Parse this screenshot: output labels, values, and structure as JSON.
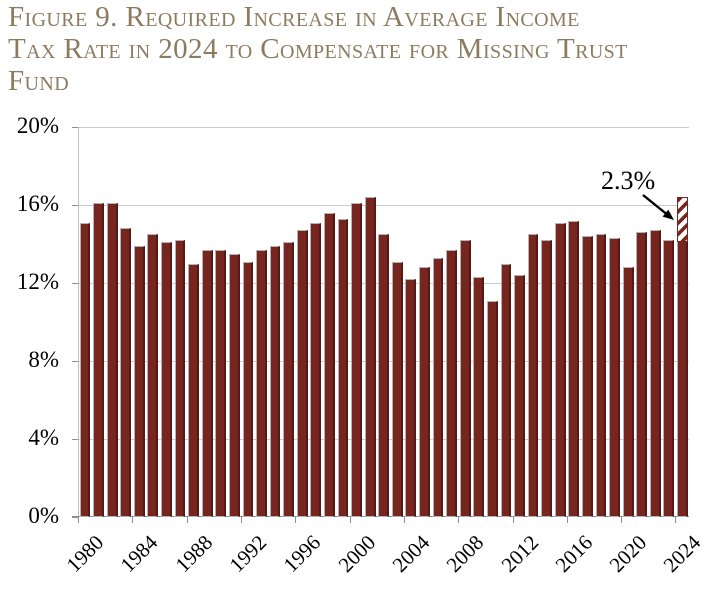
{
  "title": {
    "lines": [
      "Figure 9. Required Increase in Average Income",
      "Tax Rate in 2024 to Compensate for Missing Trust",
      "Fund"
    ]
  },
  "annotation": {
    "label": "2.3%"
  },
  "colors": {
    "title_text": "#8C7B5E",
    "bar_fill": "#76251F",
    "bar_edge_dark": "#551A16",
    "gridline": "#CBCBCB",
    "axis": "#8F8F8F",
    "hatch_white": "#FFFFFF"
  },
  "y_axis": {
    "ticks": [
      20,
      16,
      12,
      8,
      4,
      0
    ],
    "tick_labels": [
      "20%",
      "16%",
      "12%",
      "8%",
      "4%",
      "0%"
    ]
  },
  "x_axis": {
    "tick_years": [
      1980,
      1984,
      1988,
      1992,
      1996,
      2000,
      2004,
      2008,
      2012,
      2016,
      2020,
      2024
    ],
    "tick_labels": [
      "1980",
      "1984",
      "1988",
      "1992",
      "1996",
      "2000",
      "2004",
      "2008",
      "2012",
      "2016",
      "2020",
      "2024"
    ]
  },
  "chart_data": {
    "type": "bar",
    "title": "Figure 9. Required Increase in Average Income Tax Rate in 2024 to Compensate for Missing Trust Fund",
    "xlabel": "",
    "ylabel": "",
    "unit": "percent",
    "ylim": [
      0,
      20
    ],
    "grid": true,
    "x": [
      1980,
      1981,
      1982,
      1983,
      1984,
      1985,
      1986,
      1987,
      1988,
      1989,
      1990,
      1991,
      1992,
      1993,
      1994,
      1995,
      1996,
      1997,
      1998,
      1999,
      2000,
      2001,
      2002,
      2003,
      2004,
      2005,
      2006,
      2007,
      2008,
      2009,
      2010,
      2011,
      2012,
      2013,
      2014,
      2015,
      2016,
      2017,
      2018,
      2019,
      2020,
      2021,
      2022,
      2023,
      2024
    ],
    "values": [
      15.1,
      16.1,
      16.1,
      14.8,
      13.9,
      14.5,
      14.1,
      14.2,
      13.0,
      13.7,
      13.7,
      13.5,
      13.1,
      13.7,
      13.9,
      14.1,
      14.7,
      15.1,
      15.6,
      15.3,
      16.1,
      16.4,
      14.5,
      13.1,
      12.2,
      12.8,
      13.3,
      13.7,
      14.2,
      12.3,
      11.1,
      13.0,
      12.4,
      14.5,
      14.2,
      15.1,
      15.2,
      14.4,
      14.5,
      14.3,
      12.8,
      14.6,
      14.7,
      14.2,
      14.1
    ],
    "highlight": {
      "year": 2024,
      "base_value": 14.1,
      "hatched_increase": 2.3,
      "total": 16.4,
      "label": "2.3%",
      "style": "diagonal-hatch"
    }
  }
}
